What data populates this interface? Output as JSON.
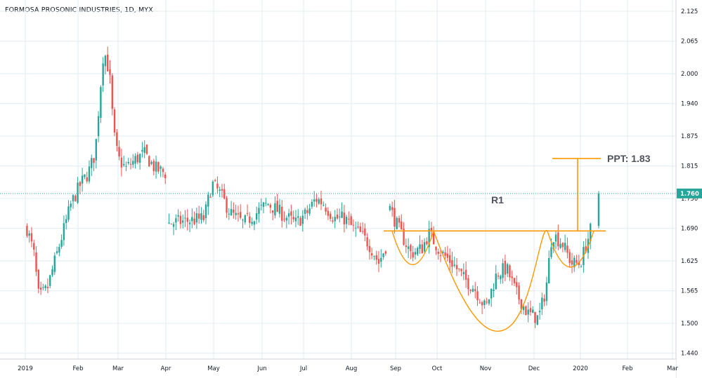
{
  "chart_title": "FORMOSA PROSONIC INDUSTRIES, 1D, MYX",
  "colors": {
    "up": "#26a69a",
    "down": "#ef5350",
    "grid": "#e1ecf2",
    "annotation": "#ff9800",
    "last_price": "#26a69a"
  },
  "chart_data": {
    "type": "candlestick",
    "y_ticks": [
      "2.125",
      "2.065",
      "2.000",
      "1.940",
      "1.875",
      "1.815",
      "1.750",
      "1.690",
      "1.625",
      "1.565",
      "1.500",
      "1.440"
    ],
    "x_ticks": [
      "2019",
      "Feb",
      "Mar",
      "Apr",
      "May",
      "Jun",
      "Jul",
      "Aug",
      "Sep",
      "Oct",
      "Nov",
      "Dec",
      "2020",
      "Feb",
      "Mar"
    ],
    "ylim": [
      1.415,
      2.14
    ],
    "last_price": "1.760",
    "annotations": {
      "resistance_label": "R1",
      "resistance_level": 1.685,
      "target_label": "PPT: 1.83",
      "target_level": 1.83
    },
    "segments": [
      {
        "from": "2019-01-02",
        "to": "2019-04-01",
        "anchors": [
          [
            "2019-01-02",
            1.69
          ],
          [
            "2019-01-06",
            1.64
          ],
          [
            "2019-01-09",
            1.55
          ],
          [
            "2019-01-14",
            1.57
          ],
          [
            "2019-01-18",
            1.62
          ],
          [
            "2019-01-23",
            1.68
          ],
          [
            "2019-01-28",
            1.74
          ],
          [
            "2019-02-03",
            1.78
          ],
          [
            "2019-02-08",
            1.8
          ],
          [
            "2019-02-13",
            1.84
          ],
          [
            "2019-02-16",
            1.95
          ],
          [
            "2019-02-19",
            2.05
          ],
          [
            "2019-02-23",
            2.0
          ],
          [
            "2019-02-26",
            1.88
          ],
          [
            "2019-03-01",
            1.83
          ],
          [
            "2019-03-06",
            1.81
          ],
          [
            "2019-03-13",
            1.83
          ],
          [
            "2019-03-18",
            1.84
          ],
          [
            "2019-03-25",
            1.81
          ],
          [
            "2019-04-01",
            1.8
          ]
        ]
      },
      {
        "from": "2019-04-03",
        "to": "2019-08-26",
        "anchors": [
          [
            "2019-04-03",
            1.7
          ],
          [
            "2019-04-25",
            1.71
          ],
          [
            "2019-04-30",
            1.78
          ],
          [
            "2019-05-05",
            1.76
          ],
          [
            "2019-05-12",
            1.72
          ],
          [
            "2019-05-20",
            1.7
          ],
          [
            "2019-05-28",
            1.72
          ],
          [
            "2019-06-05",
            1.74
          ],
          [
            "2019-06-15",
            1.72
          ],
          [
            "2019-06-25",
            1.7
          ],
          [
            "2019-07-03",
            1.72
          ],
          [
            "2019-07-09",
            1.75
          ],
          [
            "2019-07-14",
            1.74
          ],
          [
            "2019-07-21",
            1.71
          ],
          [
            "2019-07-28",
            1.71
          ],
          [
            "2019-08-02",
            1.69
          ],
          [
            "2019-08-07",
            1.68
          ],
          [
            "2019-08-13",
            1.66
          ],
          [
            "2019-08-17",
            1.64
          ],
          [
            "2019-08-20",
            1.62
          ],
          [
            "2019-08-26",
            1.66
          ]
        ]
      },
      {
        "from": "2019-08-28",
        "to": "2020-01-08",
        "anchors": [
          [
            "2019-08-28",
            1.73
          ],
          [
            "2019-09-03",
            1.69
          ],
          [
            "2019-09-12",
            1.64
          ],
          [
            "2019-09-20",
            1.65
          ],
          [
            "2019-09-25",
            1.68
          ],
          [
            "2019-10-04",
            1.64
          ],
          [
            "2019-10-11",
            1.62
          ],
          [
            "2019-10-18",
            1.59
          ],
          [
            "2019-10-25",
            1.57
          ],
          [
            "2019-11-01",
            1.53
          ],
          [
            "2019-11-08",
            1.6
          ],
          [
            "2019-11-14",
            1.61
          ],
          [
            "2019-11-20",
            1.56
          ],
          [
            "2019-11-27",
            1.52
          ],
          [
            "2019-12-04",
            1.51
          ],
          [
            "2019-12-09",
            1.57
          ],
          [
            "2019-12-13",
            1.68
          ],
          [
            "2019-12-20",
            1.66
          ],
          [
            "2019-12-26",
            1.62
          ],
          [
            "2020-01-01",
            1.62
          ],
          [
            "2020-01-05",
            1.66
          ],
          [
            "2020-01-08",
            1.69
          ]
        ]
      }
    ]
  }
}
